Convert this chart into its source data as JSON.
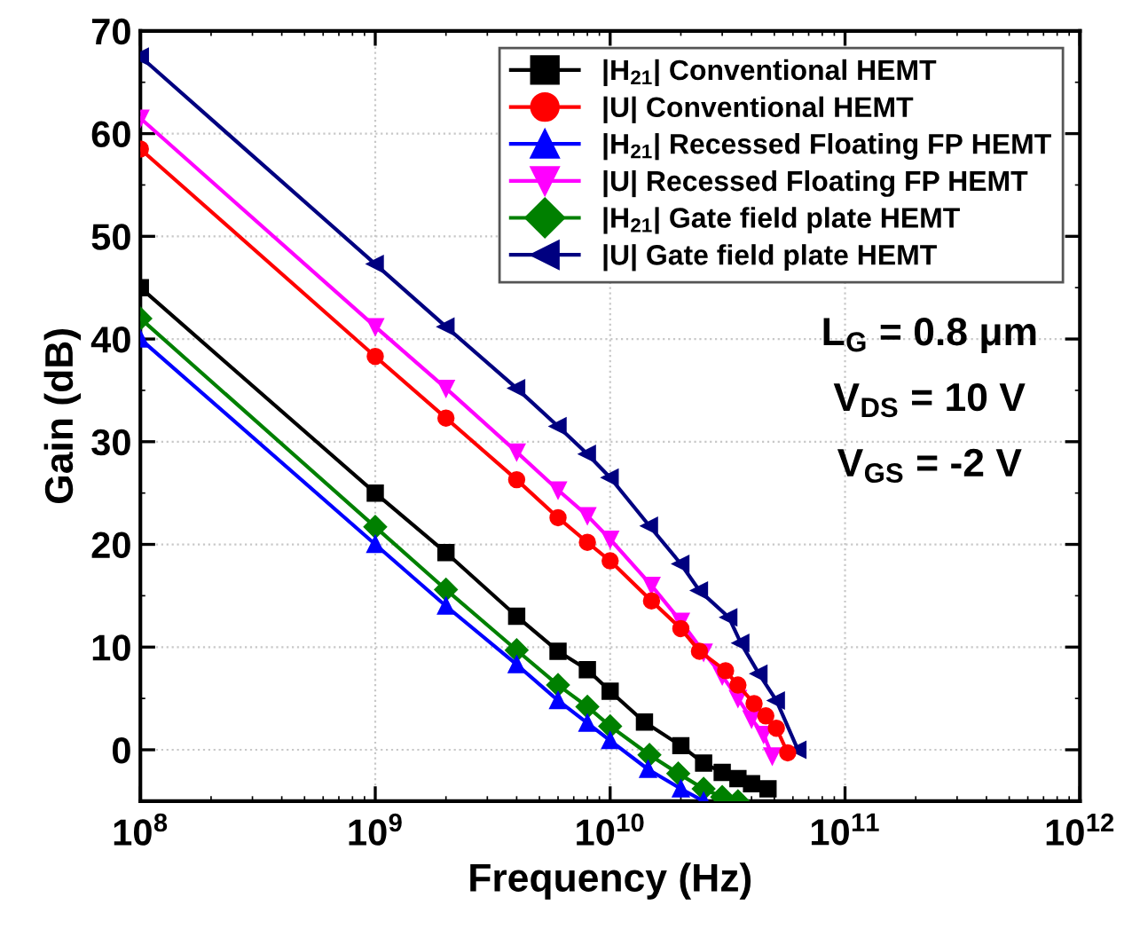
{
  "chart_data": {
    "type": "line",
    "xlabel": "Frequency (Hz)",
    "ylabel": "Gain (dB)",
    "log": "x",
    "xlim": [
      100000000.0,
      1000000000000.0
    ],
    "ylim": [
      -5,
      70
    ],
    "xticks": [
      {
        "value": 100000000.0,
        "label": "10$^{8}$"
      },
      {
        "value": 1000000000.0,
        "label": "10$^{9}$"
      },
      {
        "value": 10000000000.0,
        "label": "10$^{10}$"
      },
      {
        "value": 100000000000.0,
        "label": "10$^{11}$"
      },
      {
        "value": 1000000000000.0,
        "label": "10$^{12}$"
      }
    ],
    "yticks": [
      0,
      10,
      20,
      30,
      40,
      50,
      60,
      70
    ],
    "grid": true,
    "legend": "top right",
    "line_style": "solid",
    "annotations": [
      "L$_{G}$ = 0.8 μm",
      "V$_{DS}$ = 10 V",
      "V$_{GS}$ = -2 V"
    ],
    "series": [
      {
        "name": "|H$_{21}$| Conventional HEMT",
        "color": "#000000",
        "marker": "square",
        "x": [
          100000000.0,
          1000000000.0,
          2000000000.0,
          4000000000.0,
          6000000000.0,
          8000000000.0,
          10000000000.0,
          14000000000.0,
          20000000000.0,
          25000000000.0,
          30000000000.0,
          35000000000.0,
          40000000000.0,
          47000000000.0
        ],
        "values": [
          45,
          25,
          19.2,
          13,
          9.6,
          7.8,
          5.7,
          2.7,
          0.4,
          -1.3,
          -2.2,
          -2.8,
          -3.3,
          -3.8
        ]
      },
      {
        "name": "|U| Conventional HEMT",
        "color": "#ff0000",
        "marker": "circle",
        "x": [
          100000000.0,
          1000000000.0,
          2000000000.0,
          4000000000.0,
          6000000000.0,
          8000000000.0,
          10000000000.0,
          15000000000.0,
          20000000000.0,
          24000000000.0,
          31000000000.0,
          35000000000.0,
          41000000000.0,
          46000000000.0,
          51000000000.0,
          57000000000.0
        ],
        "values": [
          58.5,
          38.3,
          32.3,
          26.3,
          22.6,
          20.2,
          18.4,
          14.5,
          11.8,
          9.6,
          7.7,
          6.3,
          4.5,
          3.3,
          2.1,
          -0.3
        ]
      },
      {
        "name": "|H$_{21}$| Recessed Floating FP HEMT",
        "color": "#0000ff",
        "marker": "triangle",
        "x": [
          100000000.0,
          1000000000.0,
          2000000000.0,
          4000000000.0,
          6000000000.0,
          8000000000.0,
          10000000000.0,
          14500000000.0,
          20000000000.0,
          25000000000.0
        ],
        "values": [
          40,
          20,
          14,
          8.3,
          4.8,
          2.6,
          0.9,
          -1.9,
          -3.8,
          -5
        ]
      },
      {
        "name": "|U| Recessed Floating FP HEMT",
        "color": "#ff00ff",
        "marker": "triangle_down",
        "x": [
          100000000.0,
          1000000000.0,
          2000000000.0,
          4000000000.0,
          6000000000.0,
          8000000000.0,
          10000000000.0,
          15000000000.0,
          20000000000.0,
          25000000000.0,
          30000000000.0,
          35000000000.0,
          40000000000.0,
          45000000000.0,
          49000000000.0
        ],
        "values": [
          61.5,
          41.2,
          35.2,
          29,
          25.3,
          22.8,
          20.5,
          16,
          12.5,
          9.5,
          7.2,
          5,
          3,
          1.5,
          -0.6
        ]
      },
      {
        "name": "|H$_{21}$| Gate field plate HEMT",
        "color": "#008000",
        "marker": "diamond",
        "x": [
          100000000.0,
          1000000000.0,
          2000000000.0,
          4000000000.0,
          6000000000.0,
          8000000000.0,
          10000000000.0,
          14700000000.0,
          19500000000.0,
          25000000000.0,
          30000000000.0,
          35000000000.0
        ],
        "values": [
          42,
          21.7,
          15.6,
          9.7,
          6.3,
          4.2,
          2.3,
          -0.5,
          -2.3,
          -3.8,
          -4.6,
          -5
        ]
      },
      {
        "name": "|U| Gate field plate HEMT",
        "color": "#000080",
        "marker": "triangle_left",
        "x": [
          100000000.0,
          1000000000.0,
          2000000000.0,
          4000000000.0,
          6000000000.0,
          8000000000.0,
          10000000000.0,
          14700000000.0,
          20000000000.0,
          24000000000.0,
          32000000000.0,
          36000000000.0,
          43000000000.0,
          51000000000.0,
          63000000000.0
        ],
        "values": [
          67.5,
          47.3,
          41.2,
          35.2,
          31.5,
          28.8,
          26.5,
          21.8,
          18.1,
          15.5,
          12.9,
          10.4,
          7.4,
          4.8,
          0
        ]
      }
    ]
  }
}
